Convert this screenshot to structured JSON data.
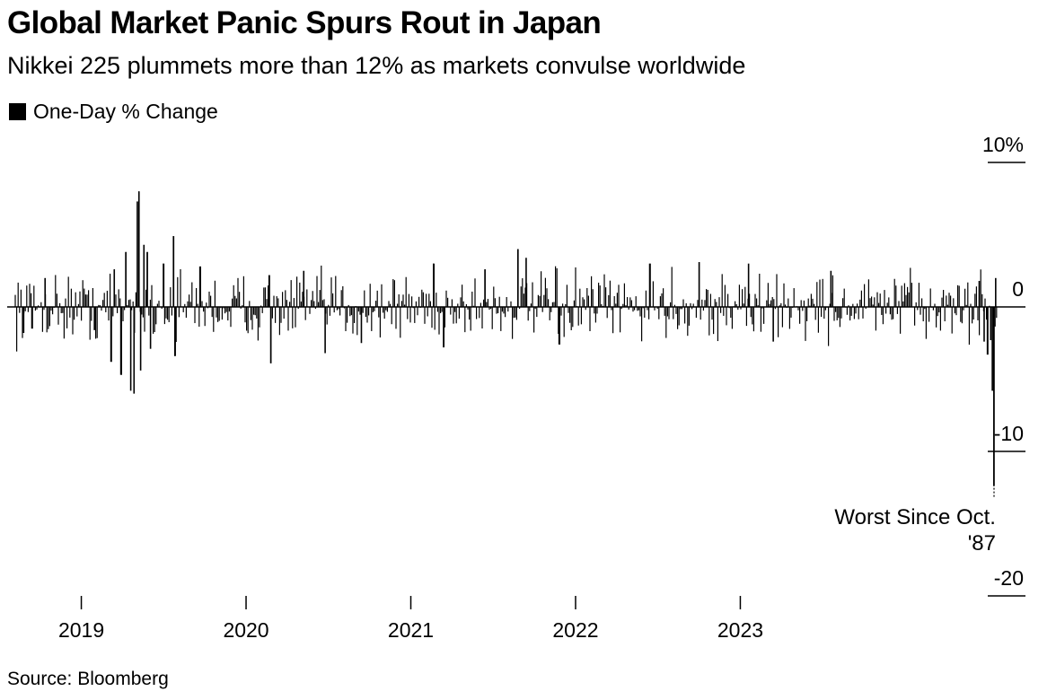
{
  "title": "Global Market Panic Spurs Rout in Japan",
  "subtitle": "Nikkei 225 plummets more than 12% as markets convulse worldwide",
  "legend": {
    "label": "One-Day % Change",
    "color": "#000000"
  },
  "source": "Source: Bloomberg",
  "chart_data": {
    "type": "bar",
    "series": [
      {
        "name": "One-Day % Change",
        "color": "#000000"
      }
    ],
    "x_range": [
      2018.55,
      2024.6
    ],
    "x_ticks": [
      {
        "value": 2019,
        "label": "2019"
      },
      {
        "value": 2020,
        "label": "2020"
      },
      {
        "value": 2021,
        "label": "2021"
      },
      {
        "value": 2022,
        "label": "2022"
      },
      {
        "value": 2023,
        "label": "2023"
      }
    ],
    "ylim": [
      -20,
      10
    ],
    "y_ticks": [
      {
        "value": 10,
        "label": "10%"
      },
      {
        "value": 0,
        "label": "0"
      },
      {
        "value": -10,
        "label": "-10"
      },
      {
        "value": -20,
        "label": "-20"
      }
    ],
    "notable_points": [
      {
        "x": 2018.65,
        "value": -1.8
      },
      {
        "x": 2018.7,
        "value": -1.5
      },
      {
        "x": 2018.78,
        "value": 2.0
      },
      {
        "x": 2019.08,
        "value": -1.6
      },
      {
        "x": 2019.18,
        "value": -3.8
      },
      {
        "x": 2019.2,
        "value": 2.6
      },
      {
        "x": 2019.24,
        "value": -4.7
      },
      {
        "x": 2019.27,
        "value": 3.8
      },
      {
        "x": 2019.3,
        "value": -5.8
      },
      {
        "x": 2019.32,
        "value": -6.0
      },
      {
        "x": 2019.34,
        "value": 7.3
      },
      {
        "x": 2019.35,
        "value": 8.0
      },
      {
        "x": 2019.36,
        "value": -4.4
      },
      {
        "x": 2019.38,
        "value": 4.3
      },
      {
        "x": 2019.4,
        "value": 3.8
      },
      {
        "x": 2019.42,
        "value": -2.9
      },
      {
        "x": 2019.5,
        "value": 3.0
      },
      {
        "x": 2019.56,
        "value": 4.9
      },
      {
        "x": 2019.57,
        "value": -3.4
      },
      {
        "x": 2019.72,
        "value": 2.8
      },
      {
        "x": 2020.14,
        "value": 2.2
      },
      {
        "x": 2020.15,
        "value": -3.9
      },
      {
        "x": 2020.35,
        "value": 2.5
      },
      {
        "x": 2020.48,
        "value": -3.2
      },
      {
        "x": 2020.7,
        "value": -2.5
      },
      {
        "x": 2021.14,
        "value": 3.0
      },
      {
        "x": 2021.2,
        "value": -2.8
      },
      {
        "x": 2021.45,
        "value": 2.6
      },
      {
        "x": 2021.65,
        "value": 4.0
      },
      {
        "x": 2021.7,
        "value": 3.4
      },
      {
        "x": 2021.9,
        "value": -2.6
      },
      {
        "x": 2022.45,
        "value": 3.0
      },
      {
        "x": 2022.75,
        "value": 3.1
      },
      {
        "x": 2023.05,
        "value": 3.0
      },
      {
        "x": 2023.2,
        "value": -2.4
      },
      {
        "x": 2023.55,
        "value": 2.5
      },
      {
        "x": 2024.45,
        "value": 1.8
      },
      {
        "x": 2024.48,
        "value": -2.4
      },
      {
        "x": 2024.5,
        "value": -3.3
      },
      {
        "x": 2024.52,
        "value": -2.3
      },
      {
        "x": 2024.53,
        "value": -5.8
      },
      {
        "x": 2024.54,
        "value": -12.4
      },
      {
        "x": 2024.55,
        "value": 2.0
      }
    ],
    "background_amplitude": 1.1,
    "annotation": {
      "x": 2024.54,
      "value": -12.4,
      "lines": [
        "Worst Since Oct.",
        "'87"
      ]
    }
  }
}
